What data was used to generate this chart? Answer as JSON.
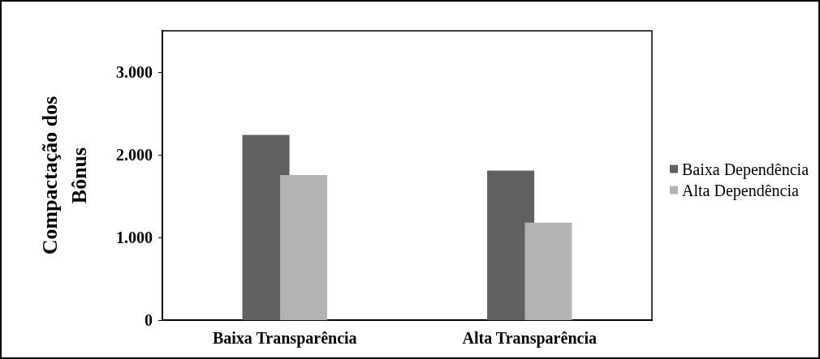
{
  "chart_data": {
    "type": "bar",
    "ylabel": "Compactação dos\nBônus",
    "categories": [
      "Baixa Transparência",
      "Alta Transparência"
    ],
    "series": [
      {
        "name": "Baixa Dependência",
        "color": "#606060",
        "values": [
          2240,
          1810
        ]
      },
      {
        "name": "Alta Dependência",
        "color": "#b3b3b3",
        "values": [
          1755,
          1180
        ]
      }
    ],
    "ylim": [
      0,
      3500
    ],
    "yticks": [
      {
        "value": 0,
        "label": "0"
      },
      {
        "value": 1000,
        "label": "1.000"
      },
      {
        "value": 2000,
        "label": "2.000"
      },
      {
        "value": 3000,
        "label": "3.000"
      }
    ],
    "grid": false,
    "legend": "right"
  }
}
